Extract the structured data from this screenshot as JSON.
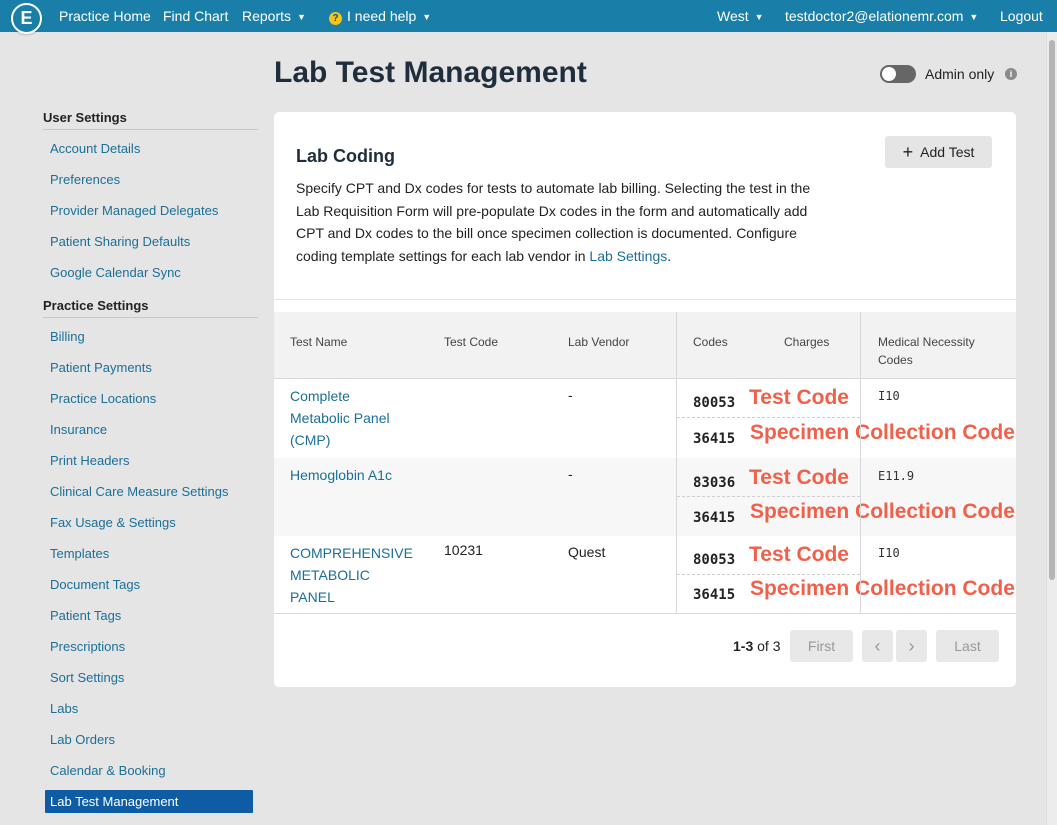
{
  "nav": {
    "logo": "E",
    "practice_home": "Practice Home",
    "find_chart": "Find Chart",
    "reports": "Reports",
    "help": "I need help",
    "help_badge": "?",
    "location": "West",
    "user": "testdoctor2@elationemr.com",
    "logout": "Logout"
  },
  "page": {
    "title": "Lab Test Management",
    "admin_label": "Admin only",
    "admin_toggle_on": false
  },
  "sidebar": {
    "user_settings_heading": "User Settings",
    "user_settings": [
      "Account Details",
      "Preferences",
      "Provider Managed Delegates",
      "Patient Sharing Defaults",
      "Google Calendar Sync"
    ],
    "practice_settings_heading": "Practice Settings",
    "practice_settings": [
      "Billing",
      "Patient Payments",
      "Practice Locations",
      "Insurance",
      "Print Headers",
      "Clinical Care Measure Settings",
      "Fax Usage & Settings",
      "Templates",
      "Document Tags",
      "Patient Tags",
      "Prescriptions",
      "Sort Settings",
      "Labs",
      "Lab Orders",
      "Calendar & Booking",
      "Lab Test Management"
    ],
    "active_item": "Lab Test Management"
  },
  "card": {
    "title": "Lab Coding",
    "add_button": "Add Test",
    "description": "Specify CPT and Dx codes for tests to automate lab billing. Selecting the test in the Lab Requisition Form will pre-populate Dx codes in the form and automatically add CPT and Dx codes to the bill once specimen collection is documented. Configure coding template settings for each lab vendor in",
    "description_link": "Lab Settings",
    "description_end": "."
  },
  "table": {
    "headers": {
      "test_name": "Test Name",
      "test_code": "Test Code",
      "lab_vendor": "Lab Vendor",
      "codes": "Codes",
      "charges": "Charges",
      "medical_necessity_1": "Medical Necessity",
      "medical_necessity_2": "Codes"
    },
    "rows": [
      {
        "name_lines": [
          "Complete",
          "Metabolic Panel",
          "(CMP)"
        ],
        "test_code": "",
        "vendor": "-",
        "code1": "80053",
        "code2": "36415",
        "dx": "I10"
      },
      {
        "name_lines": [
          "Hemoglobin A1c"
        ],
        "test_code": "",
        "vendor": "-",
        "code1": "83036",
        "code2": "36415",
        "dx": "E11.9"
      },
      {
        "name_lines": [
          "COMPREHENSIVE",
          "METABOLIC",
          "PANEL"
        ],
        "test_code": "10231",
        "vendor": "Quest",
        "code1": "80053",
        "code2": "36415",
        "dx": "I10"
      }
    ],
    "annotation_test_code": "Test Code",
    "annotation_specimen_code": "Specimen Collection Code"
  },
  "pagination": {
    "range": "1-3",
    "of_label": "of",
    "total": "3",
    "first": "First",
    "prev": "‹",
    "next": "›",
    "last": "Last"
  },
  "colors": {
    "nav": "#1a7fa8",
    "link": "#1a6f96",
    "active": "#0e5da4",
    "annotation": "#f0604a"
  }
}
